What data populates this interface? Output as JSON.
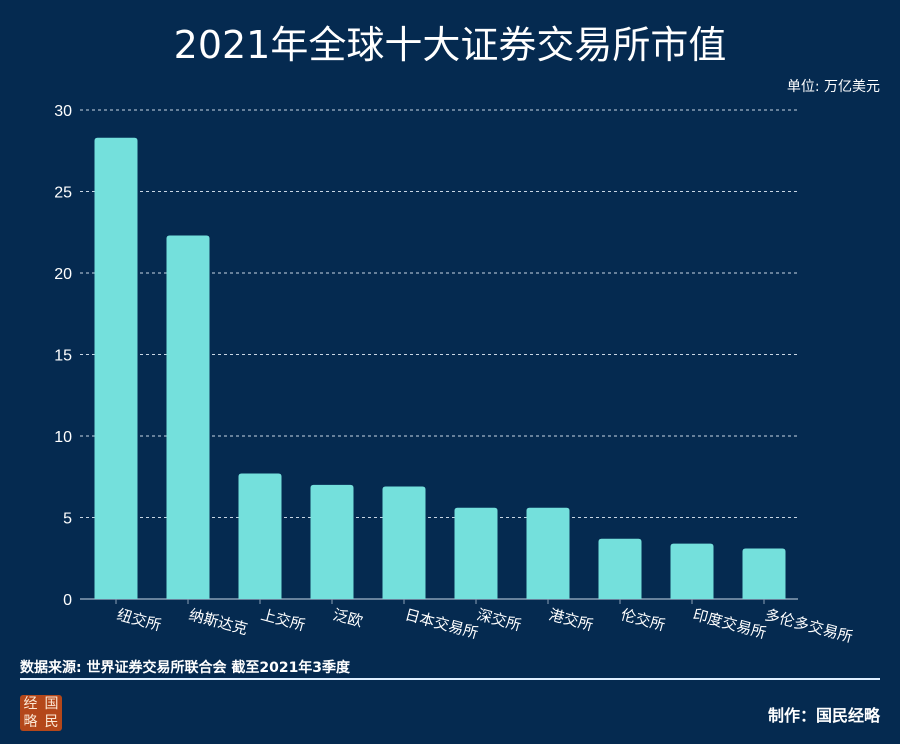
{
  "chart_data": {
    "type": "bar",
    "title": "2021年全球十大证券交易所市值",
    "unit_label": "单位: 万亿美元",
    "categories": [
      "纽交所",
      "纳斯达克",
      "上交所",
      "泛欧",
      "日本交易所",
      "深交所",
      "港交所",
      "伦交所",
      "印度交易所",
      "多伦多交易所"
    ],
    "values": [
      28.3,
      22.3,
      7.7,
      7.0,
      6.9,
      5.6,
      5.6,
      3.7,
      3.4,
      3.1
    ],
    "ylim": [
      0,
      30
    ],
    "yticks": [
      0,
      5,
      10,
      15,
      20,
      25,
      30
    ],
    "grid": true,
    "bar_color": "#74e0dc",
    "background": "#052a50"
  },
  "footer": {
    "source": "数据来源: 世界证券交易所联合会  截至2021年3季度",
    "credit": "制作：国民经略",
    "logo_text": [
      "经",
      "国",
      "略",
      "民"
    ]
  }
}
